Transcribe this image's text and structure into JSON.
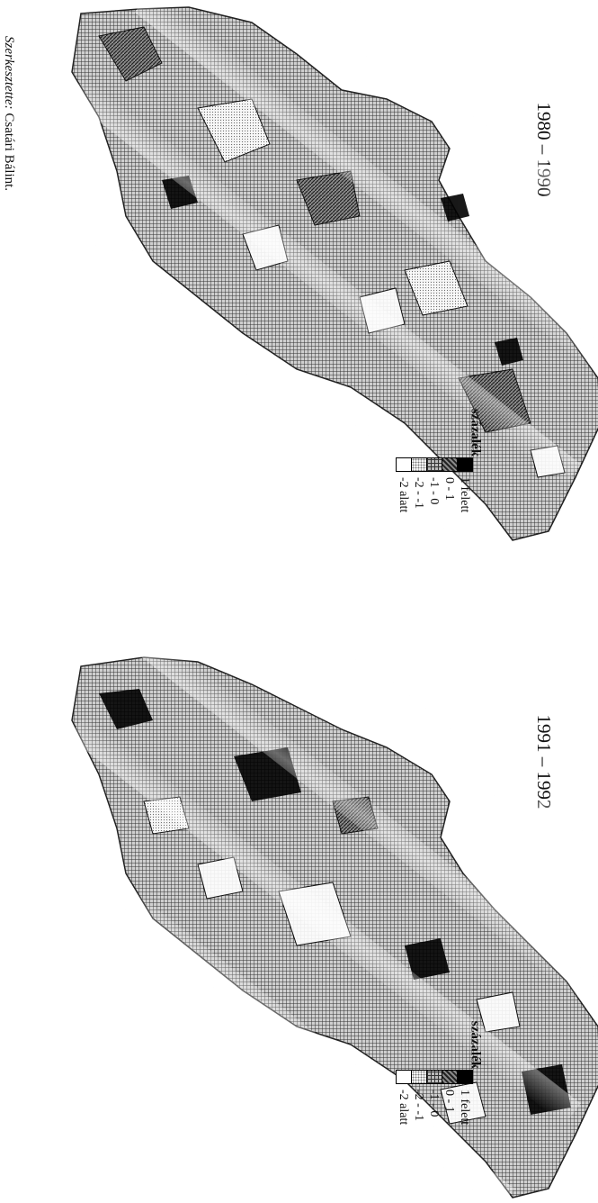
{
  "credit": {
    "label": "Szerkesztette:",
    "name": "Csatári Bálint."
  },
  "maps": [
    {
      "title": "1980 – 1990"
    },
    {
      "title": "1991 – 1992"
    }
  ],
  "legend": {
    "title": "százalék",
    "items": [
      {
        "label": "1 felett",
        "fill": "#000000"
      },
      {
        "label": "0 - 1",
        "fill": "#555555"
      },
      {
        "label": "-1 - 0",
        "fill": "#999999"
      },
      {
        "label": "-2 - -1",
        "fill": "#dddddd"
      },
      {
        "label": "-2 alatt",
        "fill": "#ffffff"
      }
    ]
  }
}
